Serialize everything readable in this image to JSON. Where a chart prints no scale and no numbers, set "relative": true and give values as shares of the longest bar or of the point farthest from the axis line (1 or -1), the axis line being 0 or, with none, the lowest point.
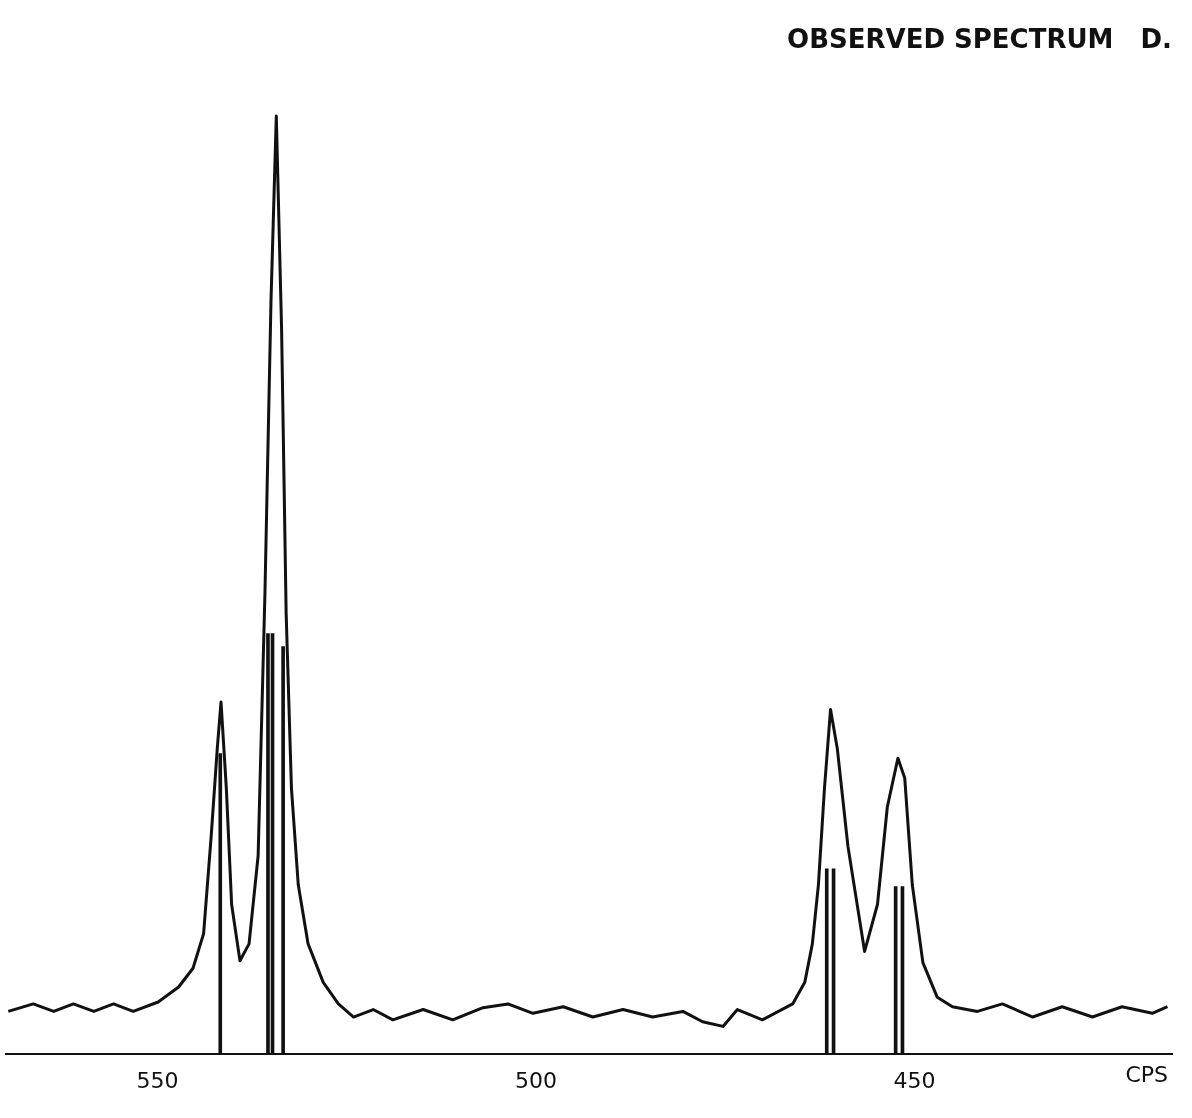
{
  "chart_data": {
    "type": "line",
    "title": "OBSERVED SPECTRUM   D.",
    "xlabel": "CPS",
    "relative": true,
    "xlim": [
      570,
      416
    ],
    "xticks": [
      550,
      500,
      450
    ],
    "series": [
      {
        "color": "#111111",
        "x": [
          569.7,
          566.4,
          563.7,
          561.1,
          558.4,
          555.8,
          553.2,
          549.9,
          547.2,
          545.3,
          543.9,
          542.9,
          542.1,
          541.6,
          540.9,
          540.2,
          539.1,
          537.9,
          536.7,
          535.8,
          535.0,
          534.3,
          533.6,
          533.0,
          532.3,
          531.4,
          530.1,
          528.1,
          526.1,
          524.1,
          521.5,
          518.9,
          514.9,
          511.0,
          507.0,
          503.7,
          500.4,
          496.4,
          492.5,
          488.5,
          484.6,
          480.6,
          478.0,
          475.3,
          473.4,
          470.1,
          466.1,
          464.5,
          463.5,
          462.7,
          461.9,
          461.1,
          460.2,
          458.8,
          456.6,
          454.9,
          453.6,
          452.2,
          451.3,
          450.3,
          448.9,
          447.0,
          445.0,
          441.7,
          438.4,
          434.4,
          430.5,
          426.5,
          422.6,
          418.6,
          416.6
        ],
        "values": [
          0.045,
          0.053,
          0.045,
          0.053,
          0.045,
          0.053,
          0.045,
          0.055,
          0.071,
          0.091,
          0.128,
          0.232,
          0.325,
          0.375,
          0.283,
          0.159,
          0.099,
          0.117,
          0.211,
          0.491,
          0.803,
          1,
          0.772,
          0.47,
          0.283,
          0.18,
          0.117,
          0.076,
          0.053,
          0.039,
          0.047,
          0.036,
          0.047,
          0.036,
          0.049,
          0.053,
          0.043,
          0.05,
          0.039,
          0.047,
          0.039,
          0.045,
          0.034,
          0.029,
          0.047,
          0.036,
          0.053,
          0.076,
          0.117,
          0.18,
          0.283,
          0.367,
          0.325,
          0.221,
          0.109,
          0.159,
          0.263,
          0.315,
          0.294,
          0.18,
          0.097,
          0.06,
          0.05,
          0.045,
          0.053,
          0.039,
          0.05,
          0.039,
          0.05,
          0.043,
          0.05
        ]
      },
      {
        "type": "bar",
        "color": "#111111",
        "x": [
          541.7,
          535.4,
          534.8,
          533.4,
          461.6,
          460.7,
          452.5,
          451.6
        ],
        "values": [
          0.32,
          0.448,
          0.448,
          0.434,
          0.197,
          0.197,
          0.178,
          0.178
        ]
      }
    ]
  }
}
